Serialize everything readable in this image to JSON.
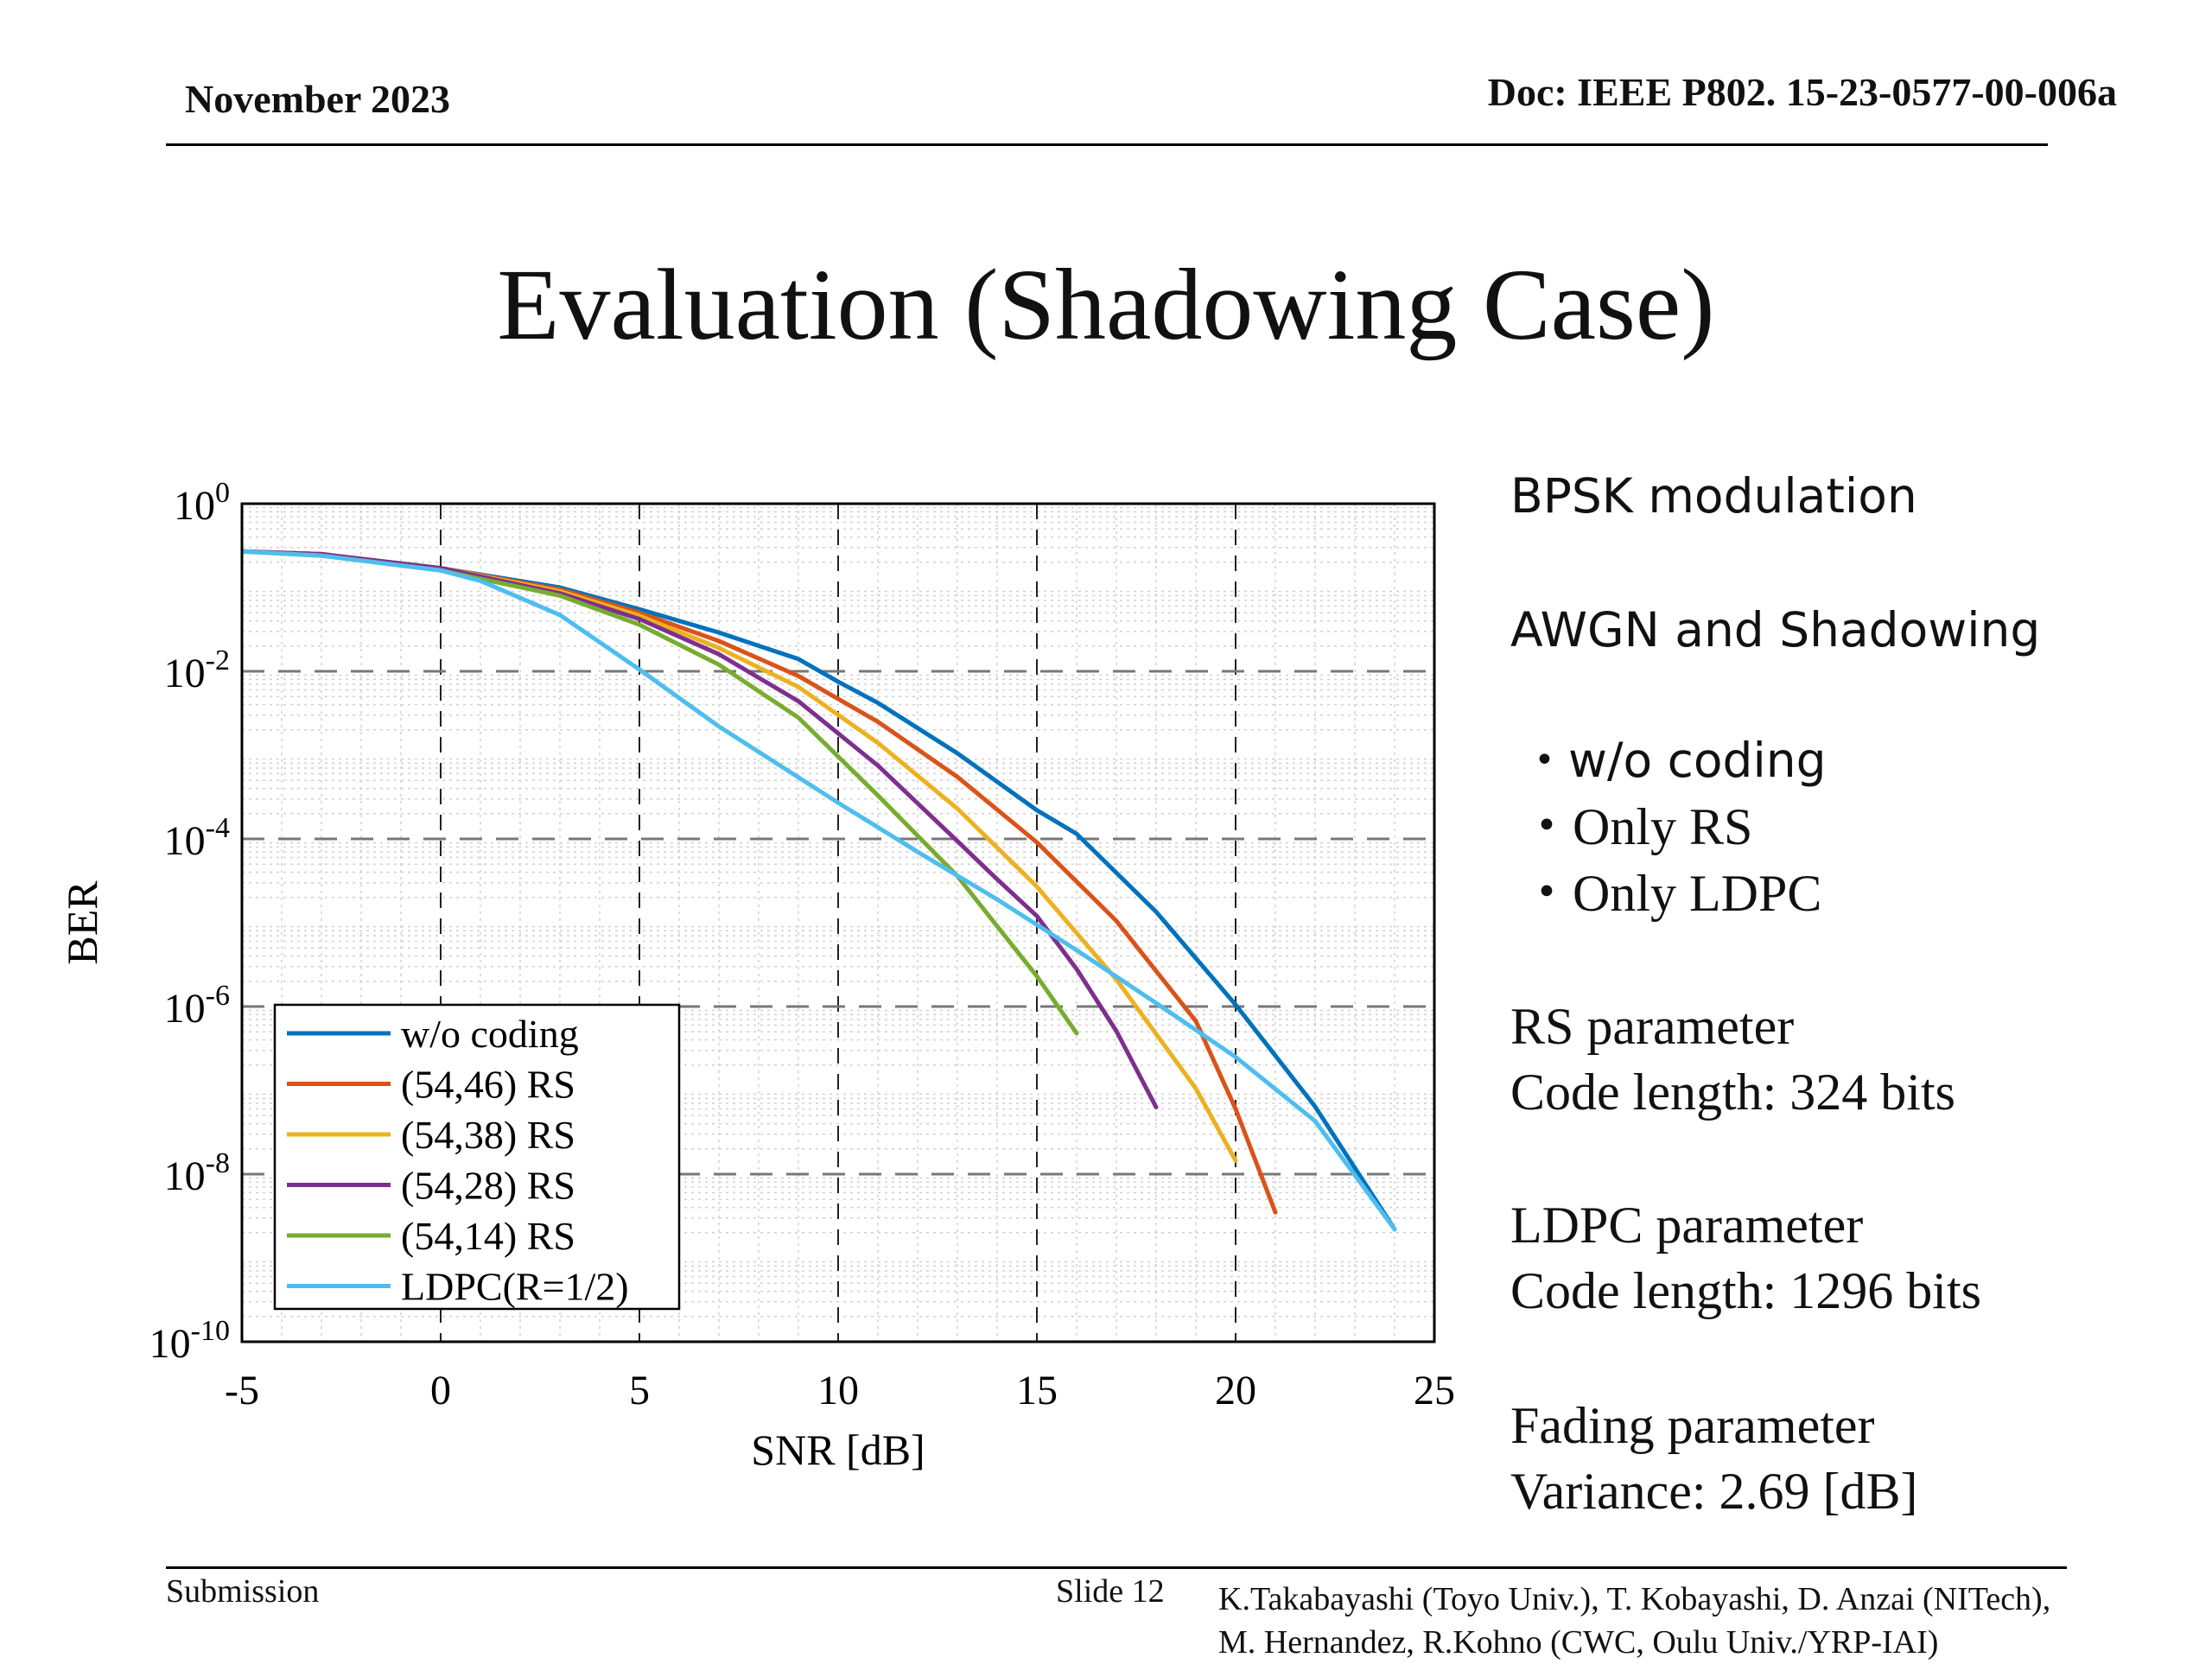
{
  "header": {
    "date": "November 2023",
    "doc": "Doc: IEEE P802. 15-23-0577-00-006a"
  },
  "title": "Evaluation (Shadowing Case)",
  "side": {
    "modulation": "BPSK modulation",
    "channel": "AWGN and Shadowing",
    "cases": [
      "・w/o coding",
      "・Only RS",
      "・Only LDPC"
    ],
    "rs_title": "RS parameter",
    "rs_value": "Code length: 324 bits",
    "ldpc_title": "LDPC parameter",
    "ldpc_value": "Code length: 1296 bits",
    "fading_title": "Fading parameter",
    "fading_value": "Variance: 2.69 [dB]"
  },
  "footer": {
    "submission": "Submission",
    "slide": "Slide 12",
    "authors_line1": "K.Takabayashi (Toyo Univ.), T. Kobayashi, D. Anzai (NITech),",
    "authors_line2": "M. Hernandez,  R.Kohno (CWC, Oulu Univ./YRP-IAI)"
  },
  "chart_data": {
    "type": "line",
    "xlabel": "SNR [dB]",
    "ylabel": "BER",
    "xlim": [
      -5,
      25
    ],
    "xticks": [
      -5,
      0,
      5,
      10,
      15,
      20,
      25
    ],
    "ylim_log10": [
      -10,
      0
    ],
    "yscale": "log",
    "yticks_exp": [
      0,
      -2,
      -4,
      -6,
      -8,
      -10
    ],
    "grid": true,
    "legend_position": "bottom-left",
    "series": [
      {
        "name": "w/o coding",
        "color": "#0072bd",
        "x": [
          -5,
          -3,
          0,
          3,
          5,
          7,
          9,
          10,
          11,
          13,
          15,
          16,
          18,
          20,
          22,
          24
        ],
        "y": [
          0.27,
          0.25,
          0.17,
          0.1,
          0.055,
          0.029,
          0.014,
          0.0075,
          0.0042,
          0.00105,
          0.00022,
          0.000115,
          1.35e-05,
          1.05e-06,
          6.4e-08,
          2.2e-09
        ]
      },
      {
        "name": "(54,46) RS",
        "color": "#d95319",
        "x": [
          -5,
          -3,
          0,
          3,
          5,
          7,
          9,
          11,
          13,
          15,
          17,
          19,
          20,
          21
        ],
        "y": [
          0.27,
          0.25,
          0.17,
          0.095,
          0.05,
          0.023,
          0.0088,
          0.0025,
          0.00055,
          9.1e-05,
          1.05e-05,
          6.7e-07,
          6e-08,
          3.5e-09
        ]
      },
      {
        "name": "(54,38) RS",
        "color": "#edb120",
        "x": [
          -5,
          -3,
          0,
          3,
          5,
          7,
          9,
          11,
          13,
          15,
          17,
          19,
          20
        ],
        "y": [
          0.27,
          0.25,
          0.17,
          0.09,
          0.046,
          0.019,
          0.0065,
          0.0014,
          0.00023,
          2.7e-05,
          2.1e-06,
          1.05e-07,
          1.45e-08
        ]
      },
      {
        "name": "(54,28) RS",
        "color": "#7e2f8e",
        "x": [
          -5,
          -3,
          0,
          3,
          5,
          7,
          9,
          11,
          13,
          14,
          15,
          16,
          17,
          18
        ],
        "y": [
          0.27,
          0.25,
          0.17,
          0.085,
          0.042,
          0.016,
          0.0044,
          0.00075,
          9.4e-05,
          3.3e-05,
          1.2e-05,
          2.8e-06,
          5.1e-07,
          6.3e-08
        ]
      },
      {
        "name": "(54,14) RS",
        "color": "#77ac30",
        "x": [
          -5,
          -3,
          0,
          3,
          5,
          7,
          9,
          11,
          13,
          15,
          16
        ],
        "y": [
          0.27,
          0.24,
          0.16,
          0.08,
          0.036,
          0.012,
          0.0028,
          0.00033,
          3.6e-05,
          2.3e-06,
          4.8e-07
        ]
      },
      {
        "name": "LDPC(R=1/2)",
        "color": "#4dbeee",
        "x": [
          -5,
          -3,
          0,
          1,
          3,
          5,
          7,
          10,
          12,
          14,
          16,
          18,
          20,
          22,
          24
        ],
        "y": [
          0.27,
          0.24,
          0.16,
          0.12,
          0.047,
          0.0105,
          0.0022,
          0.00027,
          7e-05,
          1.9e-05,
          4.7e-06,
          1.1e-06,
          2.5e-07,
          4.3e-08,
          2.2e-09
        ]
      }
    ]
  }
}
